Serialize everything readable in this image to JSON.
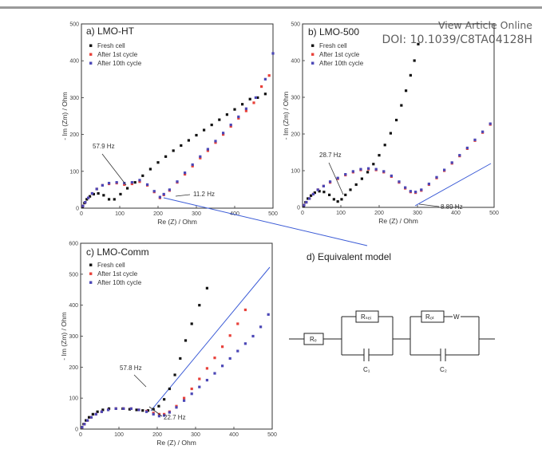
{
  "header": {
    "view_online": "View Article Online",
    "doi": "DOI: 10.1039/C8TA04128H"
  },
  "colors": {
    "fresh": "#111111",
    "first": "#e8413a",
    "tenth": "#4b47b6",
    "fit": "#3b5bd6"
  },
  "legend": [
    "Fresh cell",
    "After 1st cycle",
    "After 10th cycle"
  ],
  "chart_data": [
    {
      "type": "scatter",
      "title": "a) LMO-HT",
      "xlabel": "Re (Z) / Ohm",
      "ylabel": "- Im (Zm) / Ohm",
      "xlim": [
        0,
        500
      ],
      "ylim": [
        0,
        500
      ],
      "xticks": [
        0,
        100,
        200,
        300,
        400,
        500
      ],
      "yticks": [
        0,
        100,
        200,
        300,
        400,
        500
      ],
      "series": [
        {
          "name": "Fresh cell",
          "color": "#111111",
          "x": [
            3,
            8,
            14,
            22,
            32,
            44,
            58,
            72,
            86,
            102,
            120,
            140,
            160,
            180,
            200,
            220,
            240,
            260,
            280,
            300,
            320,
            340,
            360,
            380,
            400,
            420,
            440,
            460,
            480
          ],
          "y": [
            4,
            14,
            24,
            32,
            38,
            40,
            35,
            24,
            24,
            38,
            54,
            70,
            88,
            106,
            124,
            140,
            156,
            170,
            184,
            198,
            212,
            226,
            240,
            254,
            268,
            282,
            296,
            300,
            310
          ]
        },
        {
          "name": "After 1st cycle",
          "color": "#e8413a",
          "x": [
            4,
            10,
            18,
            28,
            40,
            55,
            72,
            92,
            112,
            132,
            152,
            172,
            190,
            205,
            215,
            230,
            250,
            270,
            290,
            310,
            330,
            350,
            370,
            390,
            410,
            430,
            450,
            470,
            490
          ],
          "y": [
            6,
            16,
            28,
            40,
            52,
            62,
            66,
            68,
            64,
            66,
            72,
            62,
            44,
            28,
            36,
            48,
            70,
            92,
            114,
            136,
            156,
            178,
            200,
            222,
            244,
            264,
            286,
            330,
            360
          ]
        },
        {
          "name": "After 10th cycle",
          "color": "#4b47b6",
          "x": [
            4,
            10,
            18,
            28,
            40,
            55,
            72,
            92,
            112,
            132,
            152,
            172,
            190,
            205,
            215,
            230,
            250,
            270,
            290,
            310,
            330,
            350,
            370,
            390,
            410,
            430,
            455,
            480,
            500
          ],
          "y": [
            6,
            16,
            28,
            40,
            52,
            62,
            68,
            70,
            68,
            70,
            76,
            64,
            46,
            30,
            38,
            50,
            72,
            96,
            118,
            140,
            160,
            182,
            204,
            226,
            248,
            270,
            300,
            350,
            420
          ]
        }
      ],
      "annotations": [
        "57.9 Hz",
        "11.2 Hz"
      ]
    },
    {
      "type": "scatter",
      "title": "b) LMO-500",
      "xlabel": "Re (Z) / Ohm",
      "ylabel": "- Im (Zm) / Ohm",
      "xlim": [
        0,
        500
      ],
      "ylim": [
        0,
        500
      ],
      "xticks": [
        0,
        100,
        200,
        300,
        400,
        500
      ],
      "yticks": [
        0,
        100,
        200,
        300,
        400,
        500
      ],
      "series": [
        {
          "name": "Fresh cell",
          "color": "#111111",
          "x": [
            3,
            8,
            14,
            22,
            32,
            44,
            56,
            70,
            82,
            92,
            102,
            112,
            125,
            140,
            155,
            170,
            185,
            200,
            215,
            230,
            245,
            258,
            270,
            282,
            292,
            302
          ],
          "y": [
            4,
            14,
            24,
            32,
            40,
            44,
            42,
            34,
            22,
            16,
            22,
            34,
            48,
            62,
            78,
            96,
            118,
            142,
            170,
            202,
            238,
            278,
            318,
            360,
            400,
            445
          ]
        },
        {
          "name": "After 1st cycle",
          "color": "#e8413a",
          "x": [
            4,
            10,
            18,
            28,
            40,
            55,
            72,
            92,
            112,
            132,
            152,
            172,
            192,
            212,
            232,
            252,
            268,
            282,
            295,
            310,
            330,
            350,
            370,
            390,
            410,
            430,
            450,
            470,
            490
          ],
          "y": [
            6,
            14,
            24,
            36,
            48,
            58,
            68,
            78,
            88,
            96,
            102,
            104,
            102,
            96,
            84,
            68,
            52,
            42,
            40,
            46,
            62,
            80,
            100,
            120,
            140,
            160,
            182,
            204,
            226
          ]
        },
        {
          "name": "After 10th cycle",
          "color": "#4b47b6",
          "x": [
            4,
            10,
            18,
            28,
            40,
            55,
            72,
            92,
            112,
            132,
            152,
            172,
            192,
            212,
            232,
            252,
            268,
            282,
            295,
            310,
            330,
            350,
            370,
            390,
            410,
            430,
            450,
            470,
            490
          ],
          "y": [
            6,
            14,
            24,
            36,
            48,
            58,
            70,
            80,
            90,
            98,
            104,
            106,
            104,
            98,
            86,
            70,
            54,
            44,
            42,
            48,
            64,
            82,
            102,
            122,
            142,
            162,
            184,
            206,
            228
          ]
        }
      ],
      "annotations": [
        "28.7 Hz",
        "8.89 Hz"
      ]
    },
    {
      "type": "scatter",
      "title": "c) LMO-Comm",
      "xlabel": "Re (Z) / Ohm",
      "ylabel": "- Im (Zm) / Ohm",
      "xlim": [
        0,
        500
      ],
      "ylim": [
        0,
        600
      ],
      "xticks": [
        0,
        100,
        200,
        300,
        400,
        500
      ],
      "yticks": [
        0,
        100,
        200,
        300,
        400,
        500,
        600
      ],
      "series": [
        {
          "name": "Fresh cell",
          "color": "#111111",
          "x": [
            3,
            8,
            14,
            22,
            32,
            44,
            58,
            74,
            92,
            110,
            128,
            146,
            162,
            176,
            190,
            204,
            218,
            232,
            246,
            260,
            274,
            290,
            310,
            330
          ],
          "y": [
            6,
            16,
            28,
            38,
            48,
            56,
            62,
            66,
            66,
            66,
            64,
            62,
            60,
            60,
            64,
            74,
            96,
            130,
            175,
            228,
            286,
            340,
            400,
            455
          ]
        },
        {
          "name": "After 1st cycle",
          "color": "#e8413a",
          "x": [
            4,
            10,
            18,
            28,
            40,
            55,
            72,
            92,
            112,
            132,
            152,
            172,
            190,
            205,
            218,
            232,
            250,
            270,
            290,
            310,
            330,
            350,
            370,
            390,
            410,
            430
          ],
          "y": [
            6,
            16,
            28,
            38,
            48,
            56,
            62,
            66,
            66,
            66,
            62,
            58,
            52,
            48,
            48,
            56,
            74,
            100,
            130,
            162,
            196,
            230,
            266,
            302,
            340,
            385
          ]
        },
        {
          "name": "After 10th cycle",
          "color": "#4b47b6",
          "x": [
            4,
            10,
            18,
            28,
            40,
            55,
            72,
            92,
            112,
            132,
            152,
            172,
            190,
            205,
            218,
            232,
            250,
            270,
            290,
            310,
            330,
            350,
            370,
            390,
            410,
            430,
            450,
            470,
            490
          ],
          "y": [
            6,
            16,
            28,
            38,
            48,
            56,
            62,
            66,
            66,
            66,
            62,
            56,
            48,
            42,
            44,
            54,
            70,
            92,
            114,
            136,
            158,
            180,
            204,
            228,
            252,
            276,
            300,
            330,
            370
          ]
        }
      ],
      "annotations": [
        "57.8 Hz",
        "22.7 Hz"
      ]
    }
  ],
  "model": {
    "title": "d) Equivalent model",
    "labels": {
      "re": "Rₑ",
      "rsei": "Rₛₑᵢ",
      "rct": "Rₒₜ",
      "w": "W",
      "c1": "C₁",
      "c2": "C₂"
    }
  }
}
